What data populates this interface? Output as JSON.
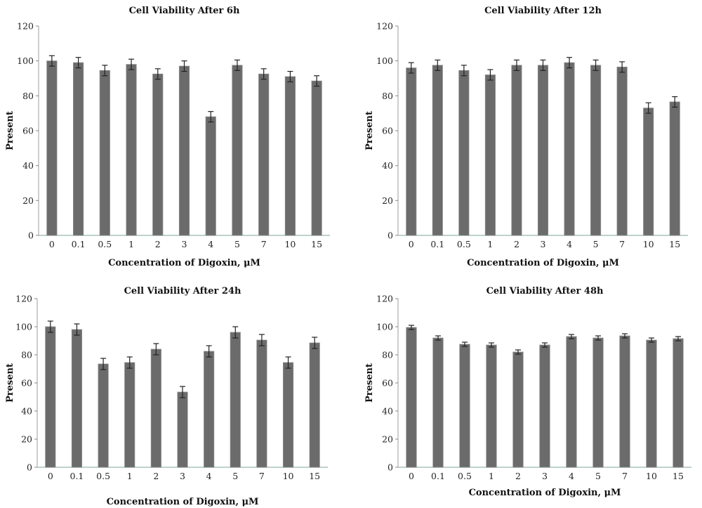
{
  "chart_data": [
    {
      "type": "bar",
      "title": "Cell Viability After 6h",
      "xlabel": "Concentration of Digoxin, μM",
      "ylabel": "Present",
      "ylim": [
        0,
        120
      ],
      "yticks": [
        0,
        20,
        40,
        60,
        80,
        100,
        120
      ],
      "categories": [
        "0",
        "0.1",
        "0.5",
        "1",
        "2",
        "3",
        "4",
        "5",
        "7",
        "10",
        "15"
      ],
      "values": [
        100,
        99,
        94.5,
        98,
        92.5,
        97,
        68,
        97.5,
        92.5,
        91,
        88.5
      ],
      "errors": [
        3,
        3,
        3,
        3,
        3,
        3,
        3,
        3,
        3,
        3,
        3
      ],
      "grid": false,
      "bar_color": "#6b6b6b"
    },
    {
      "type": "bar",
      "title": "Cell Viability After 12h",
      "xlabel": "Concentration of Digoxin, μM",
      "ylabel": "Present",
      "ylim": [
        0,
        120
      ],
      "yticks": [
        0,
        20,
        40,
        60,
        80,
        100,
        120
      ],
      "categories": [
        "0",
        "0.1",
        "0.5",
        "1",
        "2",
        "3",
        "4",
        "5",
        "7",
        "10",
        "15"
      ],
      "values": [
        96,
        97.5,
        94.5,
        92,
        97.5,
        97.5,
        99,
        97.5,
        96.5,
        73,
        76.5
      ],
      "errors": [
        3,
        3,
        3,
        3,
        3,
        3,
        3,
        3,
        3,
        3,
        3
      ],
      "grid": false,
      "bar_color": "#6b6b6b"
    },
    {
      "type": "bar",
      "title": "Cell Viability After 24h",
      "xlabel": "Concentration of Digoxin, μM",
      "ylabel": "Present",
      "ylim": [
        0,
        120
      ],
      "yticks": [
        0,
        20,
        40,
        60,
        80,
        100,
        120
      ],
      "categories": [
        "0",
        "0.1",
        "0.5",
        "1",
        "2",
        "3",
        "4",
        "5",
        "7",
        "10",
        "15"
      ],
      "values": [
        100,
        98,
        73.5,
        74.5,
        84,
        53.5,
        82.5,
        96,
        90.5,
        74.5,
        88.5
      ],
      "errors": [
        4,
        4,
        4,
        4,
        4,
        4,
        4,
        4,
        4,
        4,
        4
      ],
      "grid": false,
      "bar_color": "#6b6b6b"
    },
    {
      "type": "bar",
      "title": "Cell Viability After 48h",
      "xlabel": "Concentration of Digoxin, μM",
      "ylabel": "Present",
      "ylim": [
        0,
        120
      ],
      "yticks": [
        0,
        20,
        40,
        60,
        80,
        100,
        120
      ],
      "categories": [
        "0",
        "0.1",
        "0.5",
        "1",
        "2",
        "3",
        "4",
        "5",
        "7",
        "10",
        "15"
      ],
      "values": [
        99.5,
        92,
        87.5,
        87,
        82,
        87,
        93,
        92,
        93.5,
        90.5,
        91.5
      ],
      "errors": [
        1.5,
        1.5,
        1.5,
        1.5,
        1.5,
        1.5,
        1.5,
        1.5,
        1.5,
        1.5,
        1.5
      ],
      "grid": false,
      "bar_color": "#6b6b6b"
    }
  ]
}
